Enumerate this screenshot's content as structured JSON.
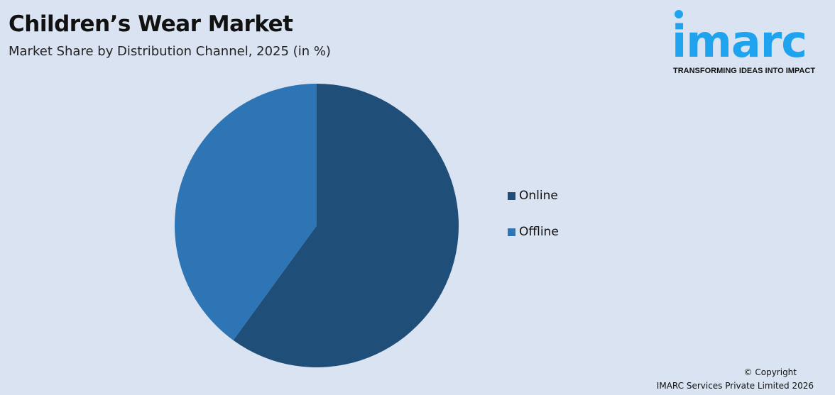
{
  "header": {
    "title": "Children’s Wear Market",
    "subtitle": "Market Share by Distribution Channel, 2025 (in %)"
  },
  "logo": {
    "word": "imarc",
    "tagline": "TRANSFORMING IDEAS INTO IMPACT",
    "color": "#1fa3ee"
  },
  "chart_data": {
    "type": "pie",
    "title": "Children’s Wear Market",
    "subtitle": "Market Share by Distribution Channel, 2025 (in %)",
    "categories": [
      "Online",
      "Offline"
    ],
    "values": [
      60,
      40
    ],
    "colors": [
      "#1f4e79",
      "#2e75b6"
    ],
    "start_angle": "top, clockwise",
    "legend_position": "right"
  },
  "footer": {
    "copyright": "© Copyright",
    "company": "IMARC Services Private Limited 2026"
  }
}
